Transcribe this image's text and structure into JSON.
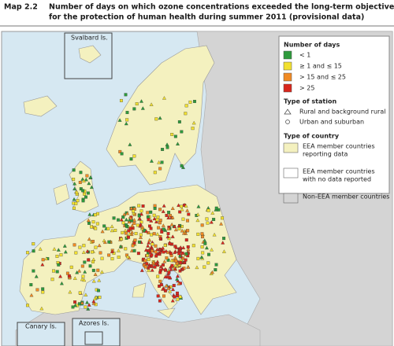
{
  "header": {
    "label": "Map 2.2",
    "title_lines": [
      "Number of days on which ozone concentrations exceeded the long-term objective",
      "for the protection of human health during summer 2011 (provisional data)"
    ]
  },
  "legend": {
    "days": {
      "title": "Number of days",
      "items": [
        {
          "label": "< 1",
          "color": "#2e9a3c"
        },
        {
          "label": "≥ 1 and ≤ 15",
          "color": "#f2e030"
        },
        {
          "label": "> 15 and ≤ 25",
          "color": "#f08a24"
        },
        {
          "label": "> 25",
          "color": "#d8261c"
        }
      ]
    },
    "station": {
      "title": "Type of station",
      "items": [
        "Rural and background rural",
        "Urban and suburban"
      ]
    },
    "country": {
      "title": "Type of country",
      "items": [
        {
          "lines": [
            "EEA member countries",
            "reporting data"
          ],
          "color": "#f4f1bf"
        },
        {
          "lines": [
            "EEA member countries",
            "with no data reported"
          ],
          "color": "#ffffff"
        },
        {
          "lines": [
            "Non-EEA member countries"
          ],
          "color": "#d4d4d4"
        }
      ]
    }
  },
  "insets": [
    "Svalbard Is.",
    "Canary Is.",
    "Azores Is."
  ]
}
